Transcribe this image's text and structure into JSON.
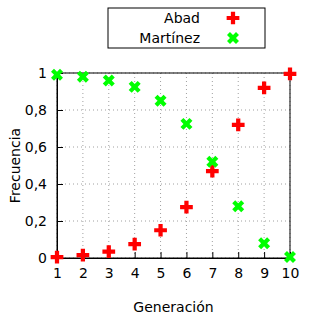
{
  "chart_data": {
    "type": "scatter",
    "x_label": "Generación",
    "y_label": "Frecuencia",
    "x": [
      1,
      2,
      3,
      4,
      5,
      6,
      7,
      8,
      9,
      10
    ],
    "series": [
      {
        "name": "Abad",
        "color": "#ff0000",
        "marker": "plus",
        "values": [
          0.005,
          0.015,
          0.035,
          0.075,
          0.15,
          0.275,
          0.47,
          0.72,
          0.92,
          0.995
        ]
      },
      {
        "name": "Martínez",
        "color": "#00ff00",
        "marker": "x",
        "values": [
          0.99,
          0.98,
          0.96,
          0.925,
          0.85,
          0.725,
          0.52,
          0.28,
          0.08,
          0.005
        ]
      }
    ],
    "xlim": [
      1,
      10
    ],
    "xticks": [
      1,
      2,
      3,
      4,
      5,
      6,
      7,
      8,
      9,
      10
    ],
    "ylim": [
      0,
      1
    ],
    "yticks": [
      0,
      {
        "value": 0.2,
        "label": "0,2"
      },
      {
        "value": 0.4,
        "label": "0,4"
      },
      {
        "value": 0.6,
        "label": "0,6"
      },
      {
        "value": 0.8,
        "label": "0,8"
      },
      1
    ],
    "grid": true,
    "legend": "top"
  }
}
